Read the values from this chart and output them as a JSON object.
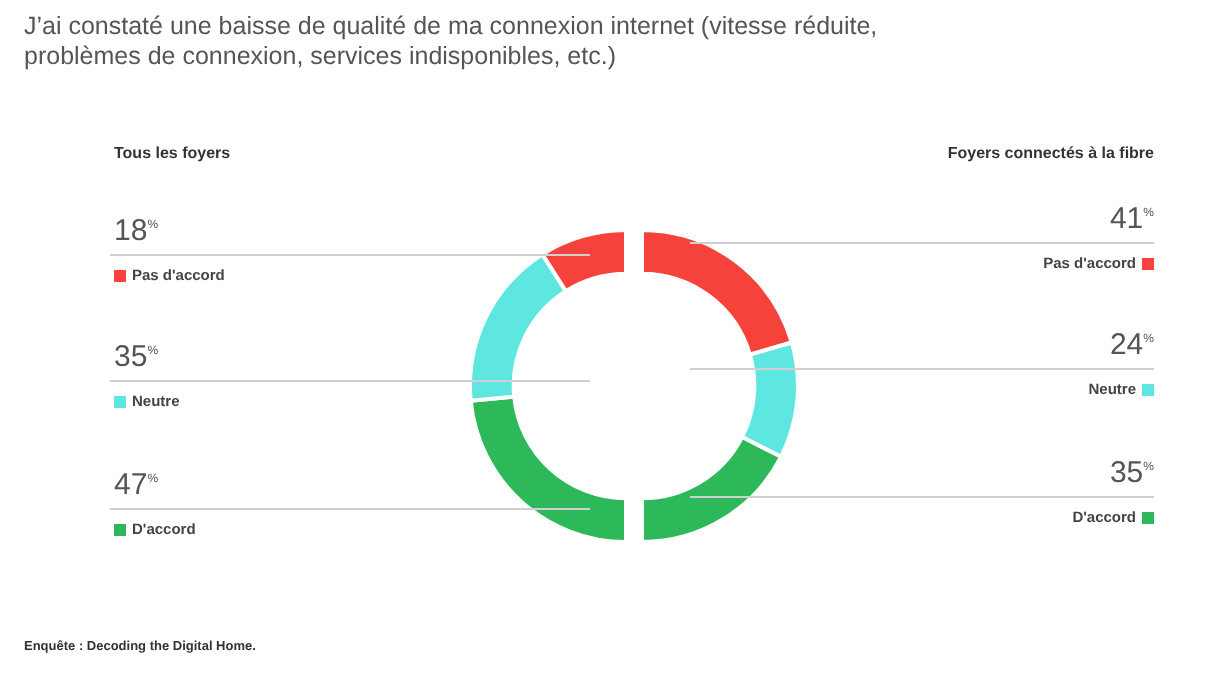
{
  "chart_data": [
    {
      "type": "donut",
      "title": "J’ai constaté une baisse de qualité de ma connexion internet (vitesse réduite, problèmes de connexion, services indisponibles, etc.)",
      "subtitle": "Tous les foyers",
      "categories": [
        "Pas d'accord",
        "Neutre",
        "D'accord"
      ],
      "values": [
        18,
        35,
        47
      ],
      "colors": [
        "#f5423a",
        "#5ee6e0",
        "#2db85a"
      ],
      "value_labels": [
        "18$^{%}$",
        "35$^{%}$",
        "47$^{%}$"
      ],
      "legend": "left",
      "annotations": [
        "Enquête : Decoding the Digital Home."
      ]
    },
    {
      "type": "donut",
      "subtitle": "Foyers connectés à la fibre",
      "categories": [
        "Pas d'accord",
        "Neutre",
        "D'accord"
      ],
      "values": [
        41,
        24,
        35
      ],
      "colors": [
        "#f5423a",
        "#5ee6e0",
        "#2db85a"
      ],
      "value_labels": [
        "41$^{%}$",
        "24$^{%}$",
        "35$^{%}$"
      ],
      "legend": "right"
    }
  ]
}
